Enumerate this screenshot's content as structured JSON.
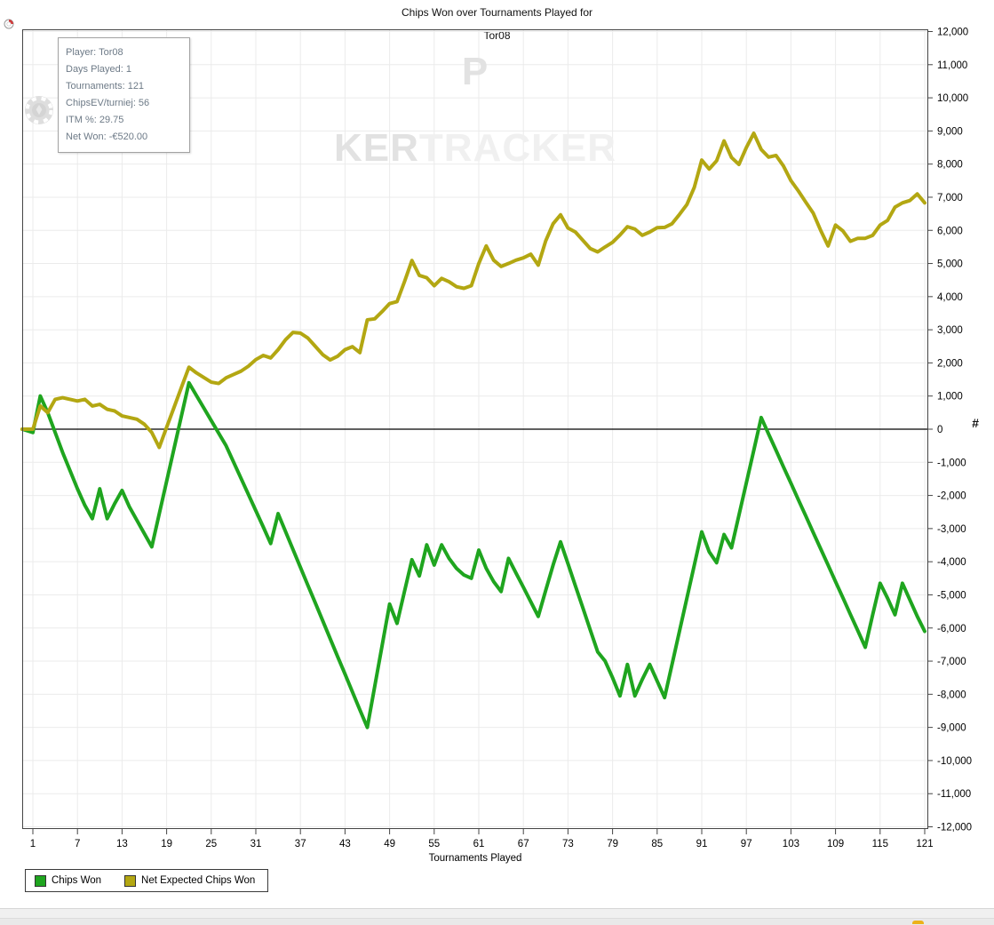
{
  "header": {
    "title_prefix": "Chips Won over Tournaments Played for",
    "player": "Tor08",
    "icon": "player-chip-icon"
  },
  "tooltip": {
    "lines": [
      "Player: Tor08",
      "Days Played: 1",
      "Tournaments: 121",
      "ChipsEV/turniej: 56",
      "ITM %: 29.75",
      "Net Won: -€520.00"
    ]
  },
  "watermark": {
    "p1": "P",
    "chip_icon": "poker-chip-icon",
    "p2": "KER",
    "p3": "TRACKER"
  },
  "axis_marker": "#",
  "colors": {
    "chips_won": "#1fa51f",
    "net_expected": "#b3a712",
    "grid": "#ebebeb",
    "axis": "#444444",
    "zero_line": "#000000"
  },
  "legend": [
    {
      "label": "Chips Won"
    },
    {
      "label": "Net Expected Chips Won"
    }
  ],
  "chart_data": {
    "type": "line",
    "title": "Chips Won over Tournaments Played for Tor08",
    "xlabel": "Tournaments Played",
    "ylabel": "",
    "xlim": [
      1,
      121
    ],
    "ylim": [
      -12000,
      12000
    ],
    "x_ticks": [
      1,
      7,
      13,
      19,
      25,
      31,
      37,
      43,
      49,
      55,
      61,
      67,
      73,
      79,
      85,
      91,
      97,
      103,
      109,
      115,
      121
    ],
    "y_tick_step": 1000,
    "grid": true,
    "legend_position": "bottom-left",
    "x_start": 1,
    "series": [
      {
        "name": "Chips Won",
        "color": "#1fa51f",
        "values": [
          -100,
          1000,
          500,
          -100,
          -700,
          -1250,
          -1800,
          -2300,
          -2700,
          -1800,
          -2700,
          -2250,
          -1850,
          -2350,
          -2750,
          -3150,
          -3550,
          -2560,
          -1570,
          -580,
          410,
          1400,
          1020,
          640,
          260,
          -120,
          -500,
          -990,
          -1480,
          -1970,
          -2460,
          -2950,
          -3450,
          -2550,
          -3090,
          -3630,
          -4170,
          -4710,
          -5240,
          -5780,
          -6320,
          -6860,
          -7390,
          -7930,
          -8470,
          -9000,
          -7760,
          -6520,
          -5280,
          -5860,
          -4900,
          -3940,
          -4430,
          -3490,
          -4100,
          -3490,
          -3900,
          -4200,
          -4400,
          -4500,
          -3650,
          -4200,
          -4600,
          -4900,
          -3900,
          -4340,
          -4770,
          -5210,
          -5650,
          -4870,
          -4100,
          -3400,
          -4060,
          -4730,
          -5390,
          -6060,
          -6720,
          -7000,
          -7500,
          -8050,
          -7100,
          -8050,
          -7550,
          -7100,
          -7600,
          -8100,
          -7100,
          -6100,
          -5100,
          -4100,
          -3100,
          -3700,
          -4030,
          -3180,
          -3580,
          -2600,
          -1620,
          -640,
          350,
          -150,
          -640,
          -1140,
          -1630,
          -2130,
          -2620,
          -3120,
          -3610,
          -4100,
          -4600,
          -5090,
          -5590,
          -6080,
          -6580,
          -5600,
          -4650,
          -5100,
          -5600,
          -4650,
          -5150,
          -5650,
          -6100
        ]
      },
      {
        "name": "Net Expected Chips Won",
        "color": "#b3a712",
        "values": [
          0,
          700,
          500,
          900,
          950,
          900,
          850,
          900,
          700,
          750,
          600,
          550,
          400,
          350,
          300,
          150,
          -100,
          -550,
          60,
          660,
          1270,
          1870,
          1700,
          1560,
          1420,
          1380,
          1550,
          1650,
          1750,
          1900,
          2100,
          2225,
          2150,
          2400,
          2700,
          2920,
          2900,
          2750,
          2500,
          2250,
          2090,
          2200,
          2400,
          2490,
          2310,
          3300,
          3330,
          3550,
          3790,
          3850,
          4450,
          5090,
          4640,
          4570,
          4330,
          4550,
          4450,
          4300,
          4250,
          4330,
          5000,
          5530,
          5100,
          4910,
          5000,
          5100,
          5170,
          5280,
          4950,
          5680,
          6200,
          6470,
          6070,
          5950,
          5700,
          5450,
          5350,
          5500,
          5640,
          5860,
          6110,
          6040,
          5850,
          5950,
          6080,
          6090,
          6200,
          6480,
          6780,
          7300,
          8120,
          7850,
          8100,
          8700,
          8200,
          7990,
          8500,
          8930,
          8440,
          8210,
          8260,
          7940,
          7500,
          7190,
          6850,
          6520,
          6000,
          5530,
          6160,
          5980,
          5670,
          5760,
          5760,
          5850,
          6160,
          6300,
          6700,
          6830,
          6900,
          7100,
          6830
        ]
      }
    ]
  }
}
